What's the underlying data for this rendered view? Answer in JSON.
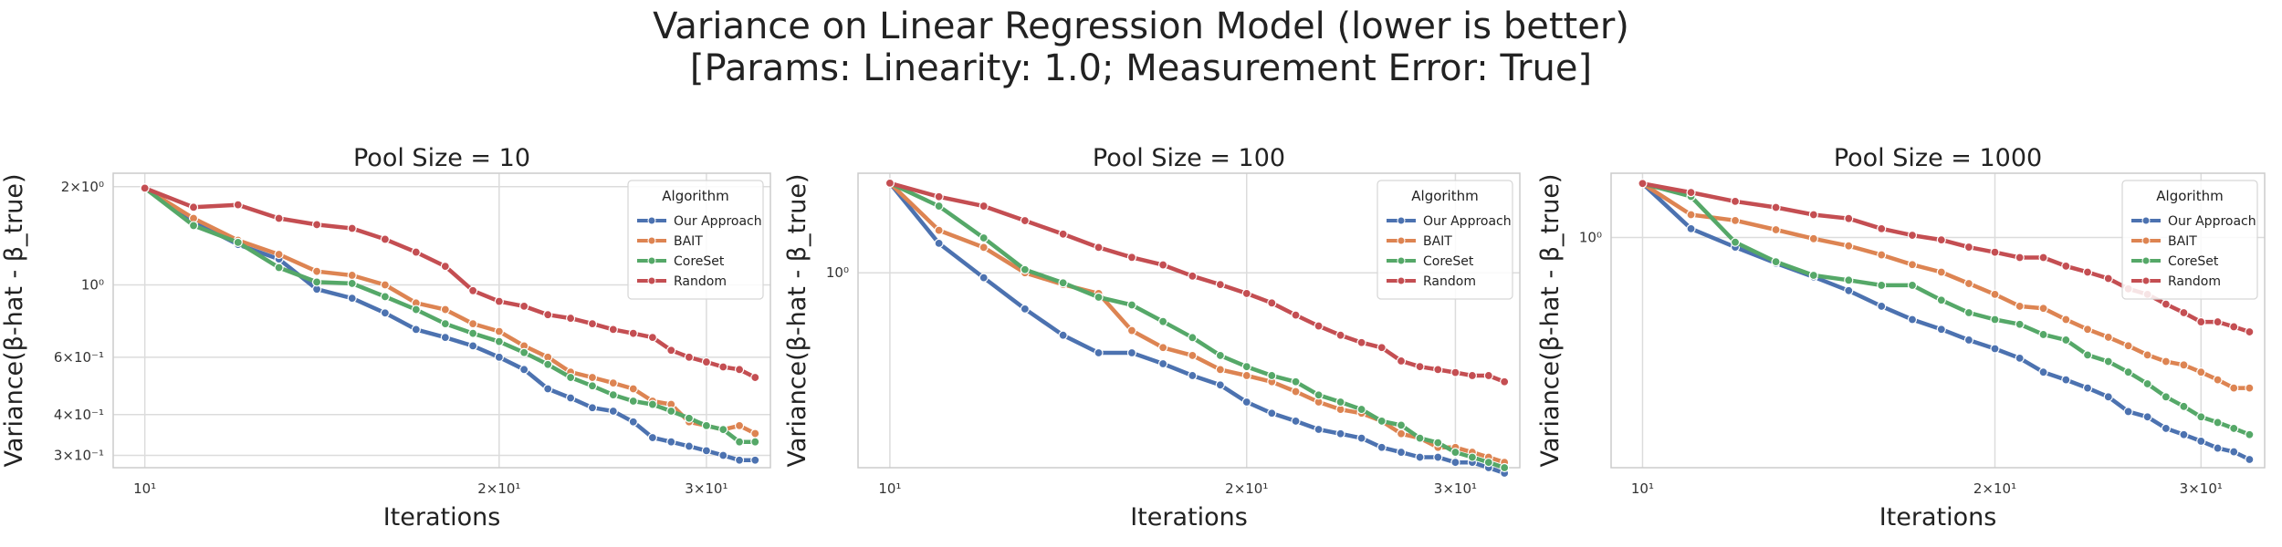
{
  "figure": {
    "title_line1": "Variance on Linear Regression Model (lower is better)",
    "title_line2": "[Params: Linearity: 1.0; Measurement Error: True]"
  },
  "colors": {
    "Our Approach": "#4c72b0",
    "BAIT": "#dd8452",
    "CoreSet": "#55a868",
    "Random": "#c44e52"
  },
  "chart_data": [
    {
      "type": "line",
      "title": "Pool Size = 10",
      "xlabel": "Iterations",
      "ylabel": "Variance(β-hat - β_true)",
      "xscale": "log",
      "yscale": "log",
      "xlim": [
        9.4,
        34.0
      ],
      "ylim": [
        0.275,
        2.2
      ],
      "xticks": [
        {
          "value": 10,
          "label": "10¹"
        },
        {
          "value": 20,
          "label": "2×10¹"
        },
        {
          "value": 30,
          "label": "3×10¹"
        }
      ],
      "yticks": [
        {
          "value": 0.3,
          "label": "3×10⁻¹"
        },
        {
          "value": 0.4,
          "label": "4×10⁻¹"
        },
        {
          "value": 0.6,
          "label": "6×10⁻¹"
        },
        {
          "value": 1.0,
          "label": "10⁰"
        },
        {
          "value": 2.0,
          "label": "2×10⁰"
        }
      ],
      "grid": true,
      "legend": {
        "title": "Algorithm",
        "placement": "top-right"
      },
      "x": [
        10,
        11,
        12,
        13,
        14,
        15,
        16,
        17,
        18,
        19,
        20,
        21,
        22,
        23,
        24,
        25,
        26,
        27,
        28,
        29,
        30,
        31,
        32,
        33
      ],
      "series": [
        {
          "name": "Our Approach",
          "values": [
            1.98,
            1.56,
            1.33,
            1.2,
            0.97,
            0.91,
            0.82,
            0.73,
            0.69,
            0.65,
            0.6,
            0.55,
            0.48,
            0.45,
            0.42,
            0.41,
            0.38,
            0.34,
            0.33,
            0.32,
            0.31,
            0.3,
            0.29,
            0.29
          ]
        },
        {
          "name": "BAIT",
          "values": [
            1.98,
            1.6,
            1.37,
            1.24,
            1.1,
            1.07,
            1.0,
            0.88,
            0.84,
            0.76,
            0.72,
            0.65,
            0.6,
            0.54,
            0.52,
            0.5,
            0.48,
            0.44,
            0.43,
            0.38,
            0.37,
            0.36,
            0.37,
            0.35
          ]
        },
        {
          "name": "CoreSet",
          "values": [
            1.98,
            1.52,
            1.35,
            1.13,
            1.02,
            1.01,
            0.92,
            0.84,
            0.76,
            0.71,
            0.67,
            0.62,
            0.57,
            0.52,
            0.49,
            0.46,
            0.44,
            0.43,
            0.41,
            0.39,
            0.37,
            0.36,
            0.33,
            0.33
          ]
        },
        {
          "name": "Random",
          "values": [
            1.98,
            1.73,
            1.76,
            1.6,
            1.53,
            1.49,
            1.38,
            1.26,
            1.14,
            0.96,
            0.89,
            0.86,
            0.81,
            0.79,
            0.76,
            0.73,
            0.71,
            0.69,
            0.63,
            0.6,
            0.58,
            0.56,
            0.55,
            0.52
          ]
        }
      ]
    },
    {
      "type": "line",
      "title": "Pool Size = 100",
      "xlabel": "Iterations",
      "ylabel": "Variance(β-hat - β_true)",
      "xscale": "log",
      "yscale": "log",
      "xlim": [
        9.4,
        34.0
      ],
      "ylim": [
        0.3,
        1.85
      ],
      "xticks": [
        {
          "value": 10,
          "label": "10¹"
        },
        {
          "value": 20,
          "label": "2×10¹"
        },
        {
          "value": 30,
          "label": "3×10¹"
        }
      ],
      "yticks": [
        {
          "value": 1.0,
          "label": "10⁰"
        }
      ],
      "grid": true,
      "legend": {
        "title": "Algorithm",
        "placement": "top-right"
      },
      "x": [
        10,
        11,
        12,
        13,
        14,
        15,
        16,
        17,
        18,
        19,
        20,
        21,
        22,
        23,
        24,
        25,
        26,
        27,
        28,
        29,
        30,
        31,
        32,
        33
      ],
      "series": [
        {
          "name": "Our Approach",
          "values": [
            1.74,
            1.2,
            0.97,
            0.8,
            0.68,
            0.61,
            0.61,
            0.57,
            0.53,
            0.5,
            0.45,
            0.42,
            0.4,
            0.38,
            0.37,
            0.36,
            0.34,
            0.33,
            0.32,
            0.32,
            0.31,
            0.31,
            0.3,
            0.29
          ]
        },
        {
          "name": "BAIT",
          "values": [
            1.74,
            1.3,
            1.17,
            1.0,
            0.93,
            0.88,
            0.7,
            0.63,
            0.6,
            0.55,
            0.53,
            0.51,
            0.48,
            0.45,
            0.43,
            0.42,
            0.4,
            0.37,
            0.36,
            0.34,
            0.34,
            0.33,
            0.32,
            0.31
          ]
        },
        {
          "name": "CoreSet",
          "values": [
            1.74,
            1.51,
            1.24,
            1.02,
            0.94,
            0.86,
            0.82,
            0.74,
            0.67,
            0.6,
            0.56,
            0.53,
            0.51,
            0.47,
            0.45,
            0.43,
            0.4,
            0.39,
            0.36,
            0.35,
            0.33,
            0.32,
            0.31,
            0.3
          ]
        },
        {
          "name": "Random",
          "values": [
            1.74,
            1.6,
            1.51,
            1.38,
            1.27,
            1.17,
            1.1,
            1.05,
            0.98,
            0.93,
            0.88,
            0.83,
            0.77,
            0.72,
            0.68,
            0.65,
            0.63,
            0.58,
            0.56,
            0.55,
            0.54,
            0.53,
            0.53,
            0.51
          ]
        }
      ]
    },
    {
      "type": "line",
      "title": "Pool Size = 1000",
      "xlabel": "Iterations",
      "ylabel": "Variance(β-hat - β_true)",
      "xscale": "log",
      "yscale": "log",
      "xlim": [
        9.4,
        34.0
      ],
      "ylim": [
        0.135,
        1.75
      ],
      "xticks": [
        {
          "value": 10,
          "label": "10¹"
        },
        {
          "value": 20,
          "label": "2×10¹"
        },
        {
          "value": 30,
          "label": "3×10¹"
        }
      ],
      "yticks": [
        {
          "value": 1.0,
          "label": "10⁰"
        }
      ],
      "grid": true,
      "legend": {
        "title": "Algorithm",
        "placement": "top-right"
      },
      "x": [
        10,
        11,
        12,
        13,
        14,
        15,
        16,
        17,
        18,
        19,
        20,
        21,
        22,
        23,
        24,
        25,
        26,
        27,
        28,
        29,
        30,
        31,
        32,
        33
      ],
      "series": [
        {
          "name": "Our Approach",
          "values": [
            1.6,
            1.08,
            0.92,
            0.8,
            0.71,
            0.63,
            0.55,
            0.49,
            0.45,
            0.41,
            0.38,
            0.35,
            0.31,
            0.29,
            0.27,
            0.25,
            0.22,
            0.21,
            0.19,
            0.18,
            0.17,
            0.16,
            0.155,
            0.145
          ]
        },
        {
          "name": "BAIT",
          "values": [
            1.6,
            1.22,
            1.16,
            1.07,
            0.99,
            0.93,
            0.86,
            0.79,
            0.74,
            0.67,
            0.61,
            0.55,
            0.54,
            0.49,
            0.45,
            0.42,
            0.39,
            0.36,
            0.34,
            0.33,
            0.31,
            0.29,
            0.27,
            0.27
          ]
        },
        {
          "name": "CoreSet",
          "values": [
            1.6,
            1.43,
            0.96,
            0.81,
            0.72,
            0.69,
            0.66,
            0.66,
            0.58,
            0.52,
            0.49,
            0.47,
            0.43,
            0.41,
            0.36,
            0.34,
            0.31,
            0.28,
            0.25,
            0.23,
            0.21,
            0.2,
            0.19,
            0.18
          ]
        },
        {
          "name": "Random",
          "values": [
            1.6,
            1.48,
            1.37,
            1.3,
            1.22,
            1.18,
            1.08,
            1.02,
            0.98,
            0.92,
            0.88,
            0.84,
            0.84,
            0.78,
            0.74,
            0.7,
            0.64,
            0.61,
            0.56,
            0.52,
            0.48,
            0.48,
            0.46,
            0.44
          ]
        }
      ]
    }
  ]
}
